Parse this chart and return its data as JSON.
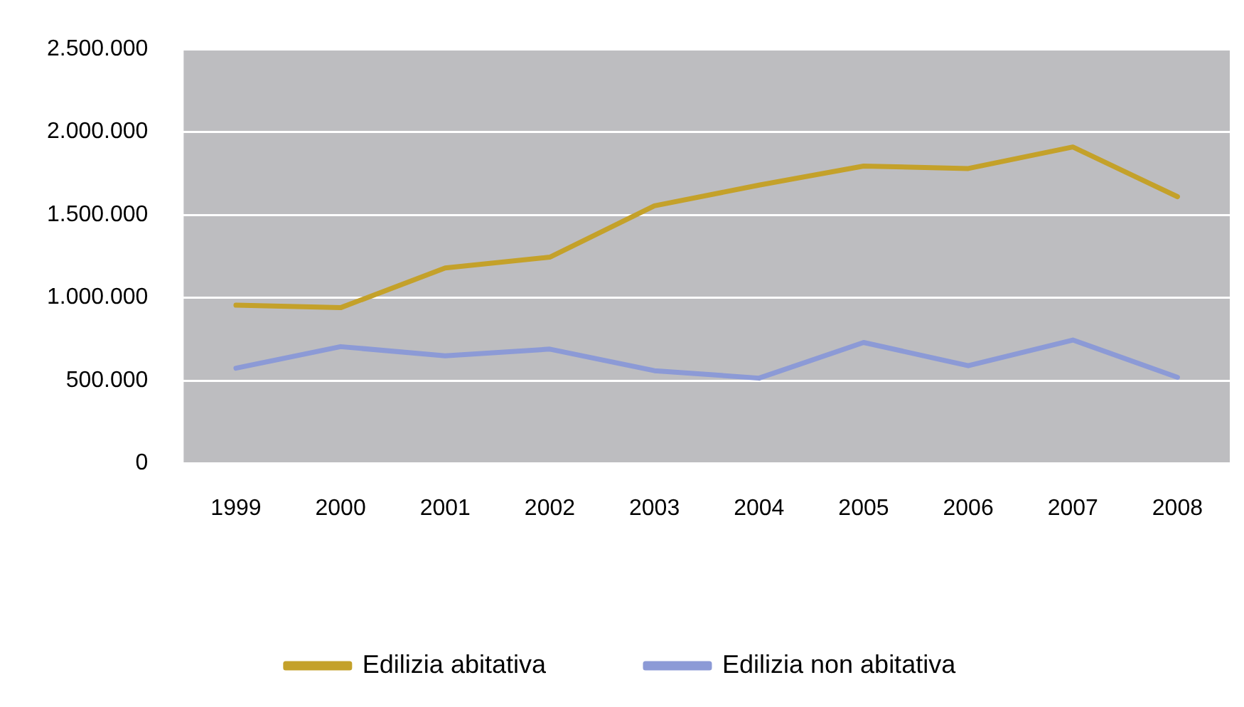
{
  "chart_data": {
    "type": "line",
    "categories": [
      "1999",
      "2000",
      "2001",
      "2002",
      "2003",
      "2004",
      "2005",
      "2006",
      "2007",
      "2008"
    ],
    "series": [
      {
        "name": "Edilizia abitativa",
        "color": "#c4a12a",
        "values": [
          955000,
          940000,
          1180000,
          1245000,
          1555000,
          1680000,
          1795000,
          1780000,
          1910000,
          1610000
        ]
      },
      {
        "name": "Edilizia non abitativa",
        "color": "#8c9ad6",
        "values": [
          575000,
          705000,
          650000,
          690000,
          560000,
          515000,
          730000,
          590000,
          745000,
          520000
        ]
      }
    ],
    "ylim": [
      0,
      2500000
    ],
    "yticks": [
      {
        "value": 0,
        "label": "0"
      },
      {
        "value": 500000,
        "label": "500.000"
      },
      {
        "value": 1000000,
        "label": "1.000.000"
      },
      {
        "value": 1500000,
        "label": "1.500.000"
      },
      {
        "value": 2000000,
        "label": "2.000.000"
      },
      {
        "value": 2500000,
        "label": "2.500.000"
      }
    ],
    "grid": "y",
    "legend": "bottom",
    "marker": "none",
    "line_style": "solid"
  }
}
